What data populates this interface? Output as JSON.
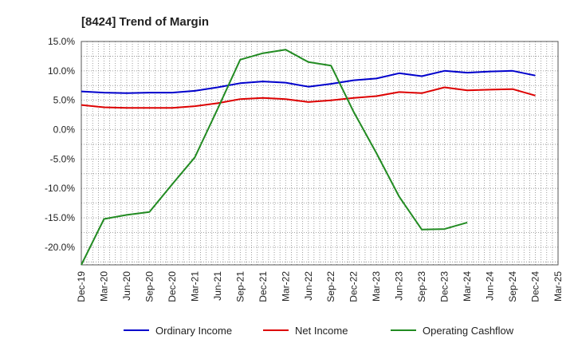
{
  "chart_data": {
    "type": "line",
    "title": "[8424]  Trend of Margin",
    "xlabel": "",
    "ylabel": "",
    "ylim": [
      -23,
      15
    ],
    "y_ticks": [
      15,
      10,
      5,
      0,
      -5,
      -10,
      -15,
      -20
    ],
    "y_tick_labels": [
      "15.0%",
      "10.0%",
      "5.0%",
      "0.0%",
      "-5.0%",
      "-10.0%",
      "-15.0%",
      "-20.0%"
    ],
    "categories": [
      "Dec-19",
      "Mar-20",
      "Jun-20",
      "Sep-20",
      "Dec-20",
      "Mar-21",
      "Jun-21",
      "Sep-21",
      "Dec-21",
      "Mar-22",
      "Jun-22",
      "Sep-22",
      "Dec-22",
      "Mar-23",
      "Jun-23",
      "Sep-23",
      "Dec-23",
      "Mar-24",
      "Jun-24",
      "Sep-24",
      "Dec-24",
      "Mar-25"
    ],
    "grid": true,
    "legend_position": "bottom",
    "series": [
      {
        "name": "Ordinary Income",
        "color": "#0000cc",
        "values": [
          6.5,
          6.3,
          6.2,
          6.3,
          6.3,
          6.6,
          7.2,
          7.9,
          8.2,
          8.0,
          7.3,
          7.8,
          8.4,
          8.7,
          9.6,
          9.1,
          10.0,
          9.7,
          9.9,
          10.0,
          9.2,
          null
        ]
      },
      {
        "name": "Net Income",
        "color": "#dd0000",
        "values": [
          4.2,
          3.8,
          3.7,
          3.7,
          3.7,
          4.0,
          4.5,
          5.2,
          5.4,
          5.2,
          4.7,
          5.0,
          5.4,
          5.7,
          6.4,
          6.2,
          7.2,
          6.7,
          6.8,
          6.9,
          5.8,
          null
        ]
      },
      {
        "name": "Operating Cashflow",
        "color": "#228b22",
        "values": [
          -23.0,
          -15.2,
          -14.5,
          -14.0,
          -9.3,
          -4.7,
          3.5,
          11.9,
          13.0,
          13.6,
          11.5,
          10.9,
          3.0,
          -4.0,
          -11.4,
          -17.0,
          -16.9,
          -15.8,
          null,
          null,
          null,
          null
        ]
      }
    ]
  }
}
